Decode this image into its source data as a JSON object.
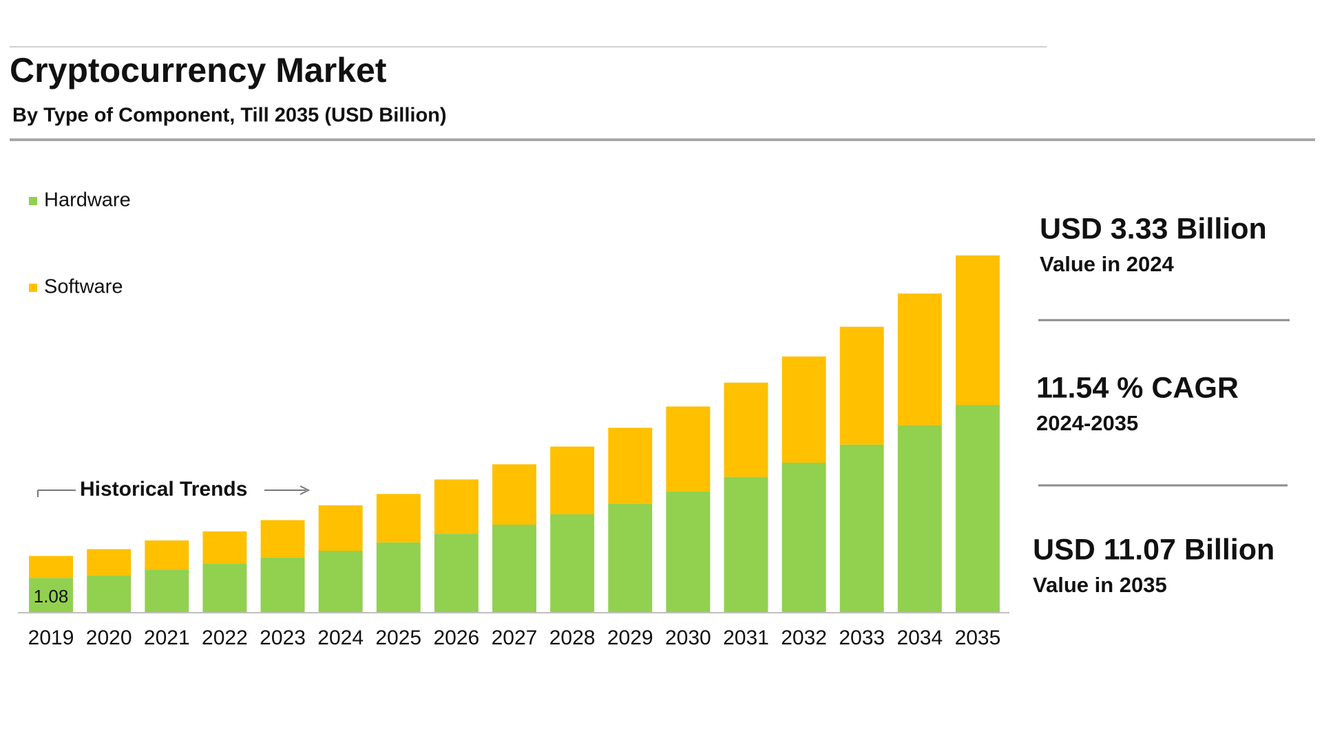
{
  "chart_data": {
    "type": "stacked_bar",
    "title": "Cryptocurrency Market",
    "subtitle": "By Type of Component, Till 2035 (USD Billion)",
    "annotation": "Historical Trends",
    "categories": [
      "2019",
      "2020",
      "2021",
      "2022",
      "2023",
      "2024",
      "2025",
      "2026",
      "2027",
      "2028",
      "2029",
      "2030",
      "2031",
      "2032",
      "2033",
      "2034",
      "2035"
    ],
    "series": [
      {
        "name": "Hardware",
        "color": "#92d050",
        "values": [
          1.08,
          1.16,
          1.34,
          1.53,
          1.71,
          1.92,
          2.18,
          2.45,
          2.73,
          3.05,
          3.37,
          3.76,
          4.21,
          4.65,
          5.21,
          5.81,
          6.44
        ]
      },
      {
        "name": "Software",
        "color": "#ffc000",
        "values": [
          0.68,
          0.81,
          0.9,
          0.99,
          1.16,
          1.41,
          1.5,
          1.68,
          1.87,
          2.1,
          2.36,
          2.63,
          2.92,
          3.29,
          3.65,
          4.08,
          4.63
        ]
      }
    ],
    "legend": "top-left",
    "highlights": [
      {
        "value": "USD 3.33 Billion",
        "caption": "Value in 2024"
      },
      {
        "value": "11.54 % CAGR",
        "caption": "2024-2035"
      },
      {
        "value": "USD 11.07 Billion",
        "caption": "Value in 2035"
      }
    ]
  }
}
